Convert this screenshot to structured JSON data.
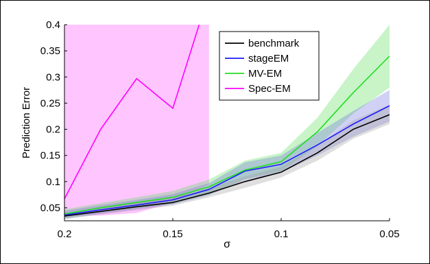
{
  "chart_data": {
    "type": "line",
    "xlabel": "σ",
    "ylabel": "Prediction Error",
    "x": [
      0.2,
      0.1833,
      0.1667,
      0.15,
      0.1333,
      0.1167,
      0.1,
      0.0833,
      0.0667,
      0.05
    ],
    "xlim": [
      0.2,
      0.05
    ],
    "x_reversed": true,
    "ylim": [
      0.025,
      0.4
    ],
    "x_ticks": [
      0.2,
      0.15,
      0.1,
      0.05
    ],
    "x_tick_labels": [
      "0.2",
      "0.15",
      "0.1",
      "0.05"
    ],
    "y_ticks": [
      0.05,
      0.1,
      0.15,
      0.2,
      0.25,
      0.3,
      0.35,
      0.4
    ],
    "y_tick_labels": [
      "0.05",
      "0.1",
      "0.15",
      "0.2",
      "0.25",
      "0.3",
      "0.35",
      "0.4"
    ],
    "grid": false,
    "legend_position": "top-right",
    "series": [
      {
        "name": "benchmark",
        "color": "#000000",
        "band_color": "#9a9a9a",
        "x": [
          0.2,
          0.1833,
          0.1667,
          0.15,
          0.1333,
          0.1167,
          0.1,
          0.0833,
          0.0667,
          0.05
        ],
        "values": [
          0.034,
          0.043,
          0.052,
          0.06,
          0.078,
          0.1,
          0.118,
          0.155,
          0.2,
          0.228
        ],
        "lower": [
          0.028,
          0.037,
          0.045,
          0.054,
          0.07,
          0.088,
          0.108,
          0.14,
          0.182,
          0.21
        ],
        "upper": [
          0.04,
          0.05,
          0.06,
          0.068,
          0.088,
          0.11,
          0.128,
          0.17,
          0.217,
          0.247
        ]
      },
      {
        "name": "stageEM",
        "color": "#1a1aff",
        "band_color": "#7070e0",
        "x": [
          0.2,
          0.1833,
          0.1667,
          0.15,
          0.1333,
          0.1167,
          0.1,
          0.0833,
          0.0667,
          0.05
        ],
        "values": [
          0.036,
          0.046,
          0.055,
          0.065,
          0.085,
          0.12,
          0.133,
          0.17,
          0.21,
          0.245
        ],
        "lower": [
          0.029,
          0.038,
          0.047,
          0.056,
          0.074,
          0.103,
          0.117,
          0.15,
          0.186,
          0.215
        ],
        "upper": [
          0.044,
          0.055,
          0.065,
          0.076,
          0.097,
          0.137,
          0.15,
          0.193,
          0.235,
          0.275
        ]
      },
      {
        "name": "MV-EM",
        "color": "#22dd22",
        "band_color": "#55dd55",
        "x": [
          0.2,
          0.1833,
          0.1667,
          0.15,
          0.1333,
          0.1167,
          0.1,
          0.0833,
          0.0667,
          0.05
        ],
        "values": [
          0.038,
          0.05,
          0.06,
          0.07,
          0.09,
          0.122,
          0.138,
          0.195,
          0.27,
          0.34
        ],
        "lower": [
          0.03,
          0.041,
          0.049,
          0.058,
          0.076,
          0.105,
          0.12,
          0.168,
          0.23,
          0.28
        ],
        "upper": [
          0.047,
          0.059,
          0.07,
          0.082,
          0.104,
          0.14,
          0.155,
          0.222,
          0.315,
          0.4
        ]
      },
      {
        "name": "Spec-EM",
        "color": "#ff00ff",
        "band_color": "#ff66ff",
        "x": [
          0.2,
          0.1833,
          0.1667,
          0.15,
          0.1333
        ],
        "values": [
          0.067,
          0.2,
          0.297,
          0.24,
          0.46
        ],
        "lower": [
          0.035,
          0.035,
          0.04,
          0.06,
          0.095
        ],
        "upper": [
          0.6,
          0.6,
          0.6,
          0.6,
          0.6
        ]
      }
    ]
  }
}
